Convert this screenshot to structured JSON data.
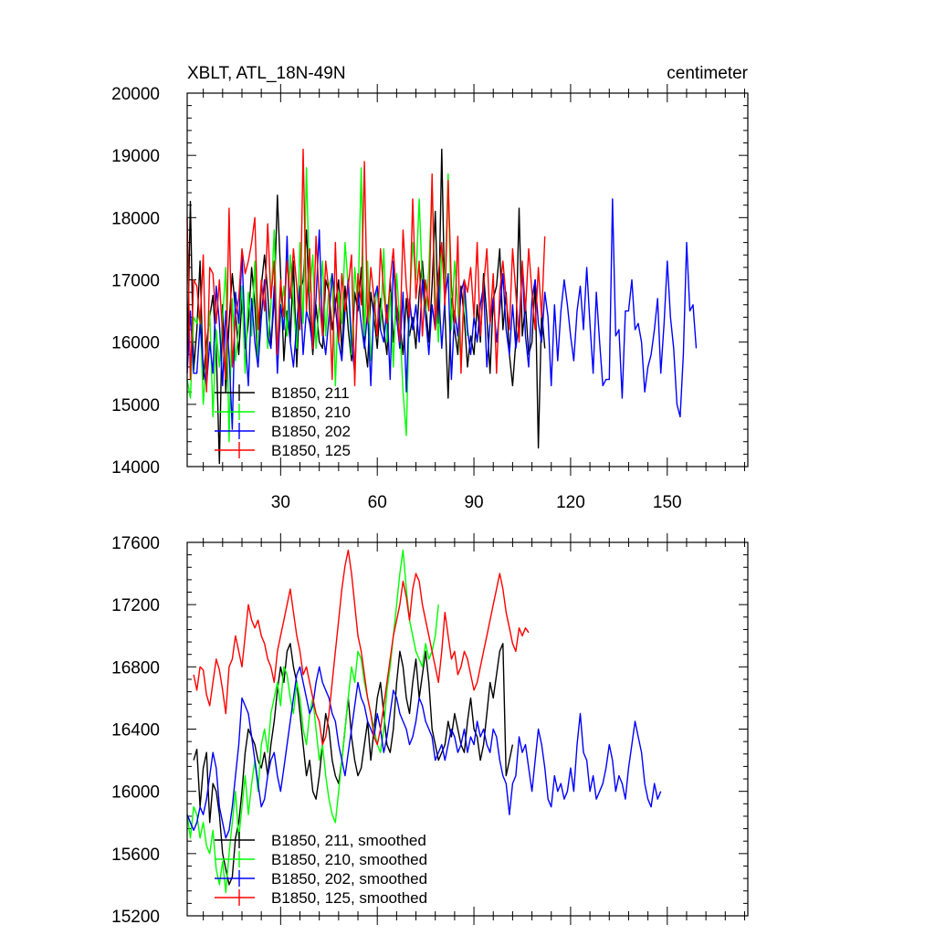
{
  "chart_data": [
    {
      "type": "line",
      "title": "XBLT, ATL_18N-49N",
      "units": "centimeter",
      "xlim": [
        1,
        175
      ],
      "ylim": [
        14000,
        20000
      ],
      "x_ticks": [
        30,
        60,
        90,
        120,
        150
      ],
      "y_ticks": [
        14000,
        15000,
        16000,
        17000,
        18000,
        19000,
        20000
      ],
      "legend_position": "bottom-left",
      "series": [
        {
          "name": "B1850, 211",
          "color": "#000000",
          "x_start": 1,
          "values": [
            15600,
            18260,
            15550,
            16200,
            17300,
            15400,
            16000,
            16400,
            16750,
            15900,
            14050,
            16600,
            15200,
            16300,
            17100,
            16500,
            15800,
            16700,
            15900,
            16300,
            17200,
            16600,
            15600,
            16900,
            17400,
            16800,
            15900,
            16700,
            18360,
            17100,
            15700,
            16500,
            16000,
            17300,
            15600,
            16800,
            17000,
            17800,
            16500,
            15800,
            16600,
            16000,
            15900,
            17000,
            16800,
            16200,
            16600,
            17000,
            15800,
            16900,
            16200,
            15700,
            16800,
            16500,
            17200,
            16000,
            15600,
            16800,
            16400,
            15900,
            16700,
            16200,
            15800,
            17000,
            16000,
            16600,
            16300,
            15800,
            16700,
            16100,
            16400,
            15900,
            16800,
            17300,
            16600,
            16000,
            16900,
            18100,
            16300,
            19100,
            16500,
            15100,
            16700,
            16200,
            15800,
            16900,
            16400,
            15600,
            16100,
            15800,
            16600,
            16000,
            17100,
            16400,
            15500,
            16700,
            16900,
            17500,
            16200,
            16800,
            15800,
            15300,
            16000,
            18150,
            16100,
            16600,
            15800,
            16000,
            17000,
            14300,
            16500,
            15900
          ]
        },
        {
          "name": "B1850, 210",
          "color": "#00ff00",
          "x_start": 1,
          "values": [
            15400,
            15100,
            16400,
            16300,
            16500,
            15000,
            15800,
            16500,
            14800,
            16200,
            15600,
            16400,
            17200,
            14400,
            16700,
            15700,
            16200,
            16900,
            15500,
            16800,
            16100,
            17300,
            15700,
            16400,
            17000,
            15900,
            16600,
            17800,
            15800,
            16400,
            16900,
            16100,
            17400,
            16600,
            15900,
            17600,
            16300,
            18800,
            16800,
            17400,
            15900,
            16600,
            17300,
            16100,
            16900,
            17100,
            15300,
            16800,
            16300,
            17600,
            16900,
            15800,
            17200,
            16600,
            18800,
            16100,
            17300,
            15700,
            16400,
            16900,
            16200,
            17500,
            16000,
            16800,
            15600,
            17100,
            16300,
            15200,
            14500,
            16600,
            17600,
            17000,
            18300,
            16900,
            16400,
            17200,
            18500,
            16800,
            16000,
            17500,
            16900,
            18700,
            16200,
            17300,
            16600,
            15600,
            16800,
            16100
          ]
        },
        {
          "name": "B1850, 202",
          "color": "#0000ff",
          "x_start": 1,
          "values": [
            15500,
            16500,
            15500,
            15500,
            16300,
            15600,
            15300,
            16000,
            15500,
            16900,
            16300,
            15300,
            16500,
            15800,
            14600,
            16800,
            16300,
            17400,
            16100,
            15300,
            16700,
            16000,
            15600,
            16400,
            17000,
            16100,
            15900,
            16900,
            15500,
            16600,
            16200,
            17700,
            16000,
            15600,
            16300,
            16900,
            15800,
            16500,
            16300,
            15900,
            16700,
            17800,
            16200,
            15800,
            16400,
            17100,
            16600,
            16000,
            15700,
            16500,
            17000,
            16000,
            15500,
            16800,
            16300,
            15900,
            16500,
            15300,
            16700,
            16900,
            16200,
            16000,
            16600,
            15400,
            17300,
            16400,
            15900,
            16800,
            15200,
            16700,
            16200,
            16600,
            16000,
            17000,
            16400,
            15800,
            16600,
            16200,
            16900,
            15900,
            16700,
            17100,
            15400,
            16500,
            16100,
            16800,
            17000,
            16200,
            15800,
            16400,
            16000,
            16600,
            16900,
            15600,
            16300,
            16700,
            16000,
            16500,
            17100,
            16200,
            15800,
            16600,
            15900,
            16300,
            17200,
            16100,
            15600,
            16700,
            17000,
            16300,
            16000,
            16800,
            16400,
            15300,
            16600,
            15700,
            16500,
            17000,
            16600,
            16100,
            15700,
            16500,
            16900,
            16200,
            17200,
            16300,
            15500,
            16800,
            16000,
            15300,
            15400,
            15400,
            18300,
            16100,
            16200,
            15100,
            16500,
            16500,
            17000,
            16200,
            16300,
            16000,
            15200,
            15600,
            15800,
            16200,
            16700,
            15500,
            16300,
            17300,
            16400,
            15900,
            15000,
            14800,
            15800,
            17600,
            16500,
            16600,
            15900
          ]
        },
        {
          "name": "B1850, 125",
          "color": "#ff0000",
          "x_start": 1,
          "values": [
            18000,
            15400,
            17000,
            16900,
            16300,
            17400,
            15200,
            17200,
            17100,
            16300,
            17000,
            16100,
            15400,
            18150,
            15600,
            16400,
            16700,
            17500,
            17100,
            17300,
            17600,
            18000,
            16200,
            17000,
            16500,
            17900,
            16700,
            17300,
            15800,
            17000,
            16400,
            17300,
            16700,
            17500,
            16900,
            16200,
            19100,
            16500,
            17500,
            15900,
            17700,
            16700,
            16100,
            17300,
            16800,
            15400,
            17600,
            16000,
            17100,
            16500,
            16900,
            17400,
            15300,
            17100,
            16600,
            18900,
            16300,
            17200,
            16700,
            16100,
            17500,
            16800,
            16300,
            17000,
            17500,
            16600,
            16000,
            17800,
            16900,
            16400,
            18300,
            16700,
            17300,
            16100,
            17000,
            16500,
            18700,
            16200,
            17100,
            17600,
            16600,
            18600,
            16900,
            16300,
            17700,
            15500,
            17000,
            16800,
            17200,
            16400,
            17600,
            16100,
            16900,
            17500,
            16300,
            17100,
            15500,
            16800,
            17300,
            16700,
            16200,
            17500,
            16800,
            16000,
            17300,
            16500,
            17500,
            16800,
            16200,
            17200,
            16400,
            17700
          ]
        }
      ]
    },
    {
      "type": "line",
      "title": "",
      "xlim": [
        1,
        175
      ],
      "ylim": [
        15200,
        17600
      ],
      "y_ticks": [
        15200,
        15600,
        16000,
        16400,
        16800,
        17200,
        17600
      ],
      "legend_position": "bottom-left",
      "series": [
        {
          "name": "B1850, 211, smoothed",
          "color": "#000000",
          "x_start": 3,
          "values": [
            16200,
            16270,
            15900,
            16150,
            16250,
            15800,
            16050,
            16000,
            15850,
            15600,
            15500,
            15400,
            15450,
            15700,
            15800,
            16000,
            16250,
            16400,
            16350,
            16300,
            16200,
            16150,
            16250,
            16100,
            16300,
            16450,
            16650,
            16800,
            16700,
            16900,
            16950,
            16800,
            16700,
            16500,
            16300,
            16100,
            16200,
            16000,
            15950,
            16100,
            16300,
            16500,
            16400,
            16200,
            16100,
            16050,
            16200,
            16400,
            16600,
            16350,
            16200,
            16100,
            16150,
            16300,
            16450,
            16200,
            16400,
            16600,
            16700,
            16500,
            16300,
            16250,
            16400,
            16700,
            16900,
            16800,
            16600,
            16500,
            16700,
            16850,
            16600,
            16750,
            16900,
            16700,
            16400,
            16300,
            16200,
            16250,
            16300,
            16450,
            16350,
            16500,
            16400,
            16300,
            16250,
            16450,
            16600,
            16400,
            16350,
            16200,
            16300,
            16500,
            16700,
            16600,
            16750,
            16900,
            16950,
            16100,
            16200,
            16300
          ]
        },
        {
          "name": "B1850, 210, smoothed",
          "color": "#00ff00",
          "x_start": 1,
          "values": [
            15850,
            15700,
            15900,
            15850,
            15700,
            15800,
            15650,
            15600,
            15750,
            15500,
            15400,
            15550,
            15350,
            15600,
            15800,
            16000,
            15700,
            15900,
            16100,
            15850,
            16050,
            16200,
            16000,
            16300,
            16400,
            16250,
            16500,
            16600,
            16700,
            16550,
            16800,
            16750,
            16600,
            16500,
            16700,
            16600,
            16400,
            16300,
            16500,
            16600,
            16400,
            16200,
            16300,
            16100,
            15950,
            15850,
            15800,
            16000,
            16200,
            16400,
            16600,
            16800,
            16700,
            16900,
            16850,
            16700,
            16600,
            16500,
            16400,
            16300,
            16250,
            16400,
            16650,
            16800,
            17000,
            17200,
            17400,
            17550,
            17300,
            17100,
            17000,
            16900,
            16850,
            16800,
            16950,
            16850,
            16900,
            17000,
            17200
          ]
        },
        {
          "name": "B1850, 202, smoothed",
          "color": "#0000ff",
          "x_start": 1,
          "values": [
            15850,
            15800,
            15750,
            15800,
            15900,
            15850,
            15950,
            16100,
            16250,
            16150,
            15900,
            15800,
            15700,
            15750,
            15900,
            16100,
            16300,
            16600,
            16550,
            16500,
            16350,
            16200,
            16050,
            15900,
            15950,
            16100,
            16200,
            16250,
            16100,
            16000,
            16150,
            16300,
            16450,
            16600,
            16750,
            16800,
            16700,
            16600,
            16500,
            16550,
            16700,
            16800,
            16700,
            16650,
            16600,
            16500,
            16450,
            16300,
            16200,
            16100,
            16250,
            16400,
            16550,
            16700,
            16600,
            16550,
            16450,
            16400,
            16350,
            16500,
            16400,
            16250,
            16350,
            16500,
            16650,
            16600,
            16500,
            16450,
            16400,
            16300,
            16350,
            16450,
            16600,
            16550,
            16450,
            16400,
            16350,
            16200,
            16250,
            16300,
            16200,
            16300,
            16400,
            16350,
            16250,
            16300,
            16400,
            16250,
            16350,
            16300,
            16450,
            16350,
            16400,
            16300,
            16250,
            16400,
            16350,
            16200,
            16100,
            16050,
            15850,
            16050,
            16100,
            16350,
            16250,
            16300,
            16150,
            16000,
            16200,
            16400,
            16300,
            16150,
            15950,
            15900,
            16100,
            16000,
            16050,
            15950,
            16000,
            16150,
            16000,
            16300,
            16500,
            16250,
            16200,
            16000,
            16100,
            15950,
            16000,
            16050,
            16150,
            16300,
            16200,
            16000,
            16100,
            16050,
            15950,
            16150,
            16300,
            16450,
            16350,
            16250,
            16050,
            15950,
            15900,
            16050,
            15950,
            16000
          ]
        },
        {
          "name": "B1850, 125, smoothed",
          "color": "#ff0000",
          "x_start": 3,
          "values": [
            16750,
            16650,
            16800,
            16780,
            16620,
            16550,
            16700,
            16850,
            16780,
            16650,
            16500,
            16800,
            16850,
            17000,
            16900,
            16800,
            17000,
            17200,
            17100,
            17050,
            17100,
            17000,
            16950,
            16850,
            16800,
            16700,
            16900,
            17000,
            17100,
            17200,
            17300,
            17150,
            17000,
            16900,
            16750,
            16800,
            16700,
            16600,
            16500,
            16450,
            16300,
            16350,
            16500,
            16700,
            16900,
            17100,
            17300,
            17450,
            17550,
            17400,
            17200,
            17000,
            16900,
            16750,
            16600,
            16500,
            16350,
            16300,
            16400,
            16550,
            16700,
            16850,
            17000,
            17100,
            17200,
            17350,
            17250,
            17100,
            17300,
            17400,
            17350,
            17200,
            17100,
            17000,
            16900,
            16800,
            16700,
            16900,
            17150,
            17000,
            16850,
            16900,
            16750,
            16800,
            16900,
            16850,
            16750,
            16650,
            16700,
            16800,
            16900,
            17000,
            17100,
            17200,
            17300,
            17400,
            17300,
            17150,
            17050,
            16950,
            16900,
            17050,
            17000,
            17050,
            17020
          ]
        }
      ]
    }
  ]
}
